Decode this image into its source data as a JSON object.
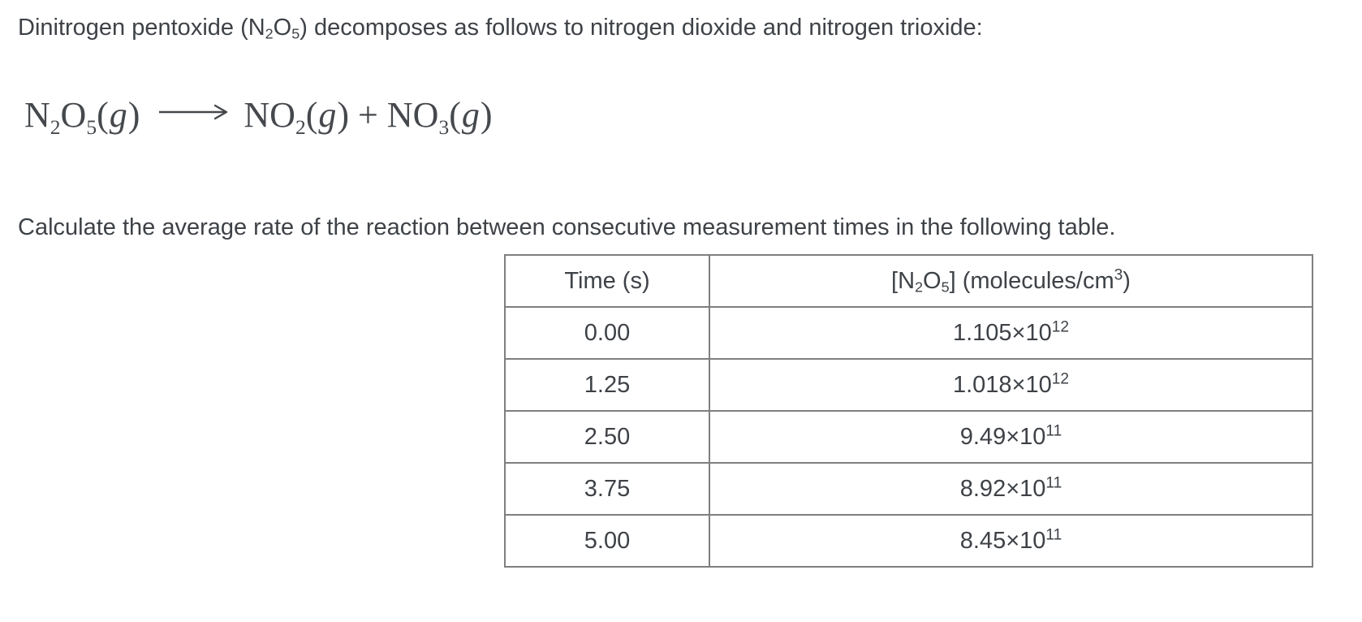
{
  "page": {
    "background": "#ffffff",
    "text_color": "#3e4247",
    "table_border_color": "#7f7f7f"
  },
  "intro_segments": [
    {
      "text": "Dinitrogen pentoxide (N"
    },
    {
      "text": "2",
      "style": "sub"
    },
    {
      "text": "O"
    },
    {
      "text": "5",
      "style": "sub"
    },
    {
      "text": ") decomposes as follows to nitrogen dioxide and nitrogen trioxide:"
    }
  ],
  "equation_segments": [
    {
      "text": "N"
    },
    {
      "text": "2",
      "style": "sub"
    },
    {
      "text": "O"
    },
    {
      "text": "5",
      "style": "sub"
    },
    {
      "text": "("
    },
    {
      "text": "g",
      "style": "italic"
    },
    {
      "text": ")"
    },
    {
      "text": "⟶",
      "style": "arrow"
    },
    {
      "text": "NO"
    },
    {
      "text": "2",
      "style": "sub"
    },
    {
      "text": "("
    },
    {
      "text": "g",
      "style": "italic"
    },
    {
      "text": ")"
    },
    {
      "text": " + "
    },
    {
      "text": "NO"
    },
    {
      "text": "3",
      "style": "sub"
    },
    {
      "text": "("
    },
    {
      "text": "g",
      "style": "italic"
    },
    {
      "text": ")"
    }
  ],
  "instruction": "Calculate the average rate of the reaction between consecutive measurement times in the following table.",
  "table": {
    "header_time_segments": [
      {
        "text": "Time (s)"
      }
    ],
    "header_conc_segments": [
      {
        "text": "[N"
      },
      {
        "text": "2",
        "style": "sub"
      },
      {
        "text": "O"
      },
      {
        "text": "5",
        "style": "sub"
      },
      {
        "text": "] (molecules/cm"
      },
      {
        "text": "3",
        "style": "sup"
      },
      {
        "text": ")"
      }
    ],
    "rows": [
      {
        "time": "0.00",
        "conc_base": "1.105×10",
        "conc_exp": "12"
      },
      {
        "time": "1.25",
        "conc_base": "1.018×10",
        "conc_exp": "12"
      },
      {
        "time": "2.50",
        "conc_base": "9.49×10",
        "conc_exp": "11"
      },
      {
        "time": "3.75",
        "conc_base": "8.92×10",
        "conc_exp": "11"
      },
      {
        "time": "5.00",
        "conc_base": "8.45×10",
        "conc_exp": "11"
      }
    ]
  },
  "chart_data": {
    "type": "table",
    "columns": [
      "Time (s)",
      "[N2O5] (molecules/cm3)"
    ],
    "time_values": [
      0.0,
      1.25,
      2.5,
      3.75,
      5.0
    ],
    "concentration_values": [
      1105000000000.0,
      1018000000000.0,
      949000000000.0,
      892000000000.0,
      845000000000.0
    ],
    "concentration_labels": [
      "1.105×10^12",
      "1.018×10^12",
      "9.49×10^11",
      "8.92×10^11",
      "8.45×10^11"
    ]
  }
}
